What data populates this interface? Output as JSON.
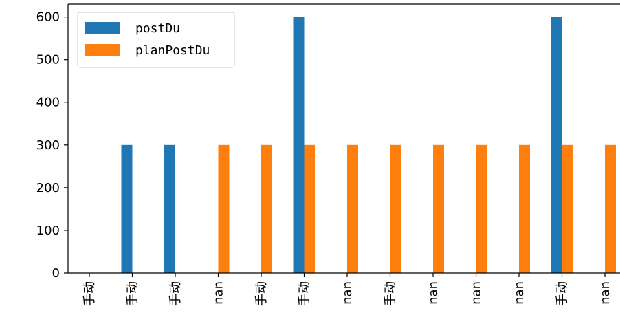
{
  "chart_data": {
    "type": "bar",
    "categories": [
      "手动",
      "手动",
      "手动",
      "nan",
      "手动",
      "手动",
      "nan",
      "手动",
      "nan",
      "nan",
      "nan",
      "手动",
      "nan"
    ],
    "series": [
      {
        "name": "postDu",
        "color": "#1f77b4",
        "values": [
          0,
          300,
          300,
          0,
          0,
          600,
          0,
          0,
          0,
          0,
          0,
          600,
          0
        ]
      },
      {
        "name": "planPostDu",
        "color": "#ff7f0e",
        "values": [
          0,
          0,
          0,
          300,
          300,
          300,
          300,
          300,
          300,
          300,
          300,
          300,
          300
        ]
      }
    ],
    "ylim": [
      0,
      630
    ],
    "yticks": [
      0,
      100,
      200,
      300,
      400,
      500,
      600
    ],
    "legend_position": "upper-left",
    "grid": false,
    "xlabel": "",
    "ylabel": "",
    "title": ""
  }
}
